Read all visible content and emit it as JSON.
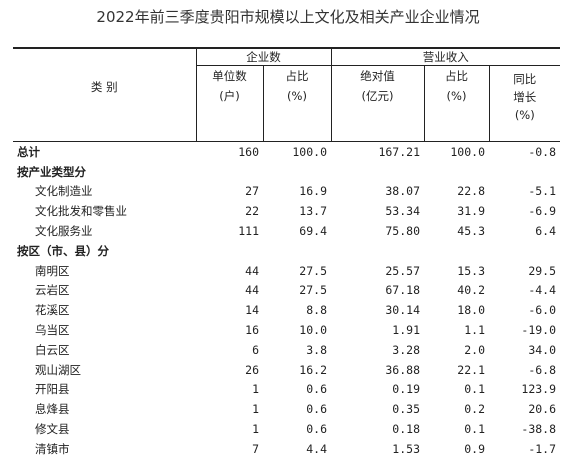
{
  "title": "2022年前三季度贵阳市规模以上文化及相关产业企业情况",
  "headers": {
    "category": "类    别",
    "group_enterprises": "企业数",
    "group_revenue": "营业收入",
    "units": [
      "单位数",
      "(户)"
    ],
    "share1": [
      "占比",
      "(%)"
    ],
    "absolute": [
      "绝对值",
      "(亿元)"
    ],
    "share2": [
      "占比",
      "(%)"
    ],
    "yoy": [
      "同比",
      "增长",
      "(%)"
    ]
  },
  "rows": [
    {
      "label": "总计",
      "units": "160",
      "share1": "100.0",
      "absolute": "167.21",
      "share2": "100.0",
      "yoy": "-0.8"
    },
    {
      "label": "按产业类型分"
    },
    {
      "label": "文化制造业",
      "units": "27",
      "share1": "16.9",
      "absolute": "38.07",
      "share2": "22.8",
      "yoy": "-5.1"
    },
    {
      "label": "文化批发和零售业",
      "units": "22",
      "share1": "13.7",
      "absolute": "53.34",
      "share2": "31.9",
      "yoy": "-6.9"
    },
    {
      "label": "文化服务业",
      "units": "111",
      "share1": "69.4",
      "absolute": "75.80",
      "share2": "45.3",
      "yoy": "6.4"
    },
    {
      "label": "按区（市、县）分"
    },
    {
      "label": "南明区",
      "units": "44",
      "share1": "27.5",
      "absolute": "25.57",
      "share2": "15.3",
      "yoy": "29.5"
    },
    {
      "label": "云岩区",
      "units": "44",
      "share1": "27.5",
      "absolute": "67.18",
      "share2": "40.2",
      "yoy": "-4.4"
    },
    {
      "label": "花溪区",
      "units": "14",
      "share1": "8.8",
      "absolute": "30.14",
      "share2": "18.0",
      "yoy": "-6.0"
    },
    {
      "label": "乌当区",
      "units": "16",
      "share1": "10.0",
      "absolute": "1.91",
      "share2": "1.1",
      "yoy": "-19.0"
    },
    {
      "label": "白云区",
      "units": "6",
      "share1": "3.8",
      "absolute": "3.28",
      "share2": "2.0",
      "yoy": "34.0"
    },
    {
      "label": "观山湖区",
      "units": "26",
      "share1": "16.2",
      "absolute": "36.88",
      "share2": "22.1",
      "yoy": "-6.8"
    },
    {
      "label": "开阳县",
      "units": "1",
      "share1": "0.6",
      "absolute": "0.19",
      "share2": "0.1",
      "yoy": "123.9"
    },
    {
      "label": "息烽县",
      "units": "1",
      "share1": "0.6",
      "absolute": "0.35",
      "share2": "0.2",
      "yoy": "20.6"
    },
    {
      "label": "修文县",
      "units": "1",
      "share1": "0.6",
      "absolute": "0.18",
      "share2": "0.1",
      "yoy": "-38.8"
    },
    {
      "label": "清镇市",
      "units": "7",
      "share1": "4.4",
      "absolute": "1.53",
      "share2": "0.9",
      "yoy": "-1.7"
    }
  ]
}
